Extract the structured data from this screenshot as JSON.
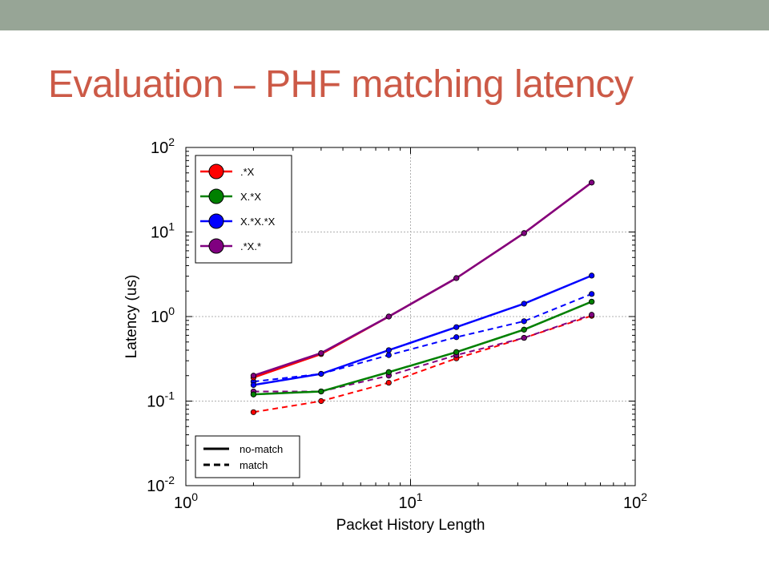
{
  "slide": {
    "title": "Evaluation – PHF matching latency"
  },
  "colors": {
    "top_bar": "#97a596",
    "title": "#cc5a47"
  },
  "chart_data": {
    "type": "line",
    "title": "",
    "xlabel": "Packet History Length",
    "ylabel": "Latency (us)",
    "xscale": "log",
    "yscale": "log",
    "xlim": [
      1,
      100
    ],
    "ylim": [
      0.01,
      100
    ],
    "xticks": [
      {
        "value": 1,
        "base": "10",
        "exp": "0"
      },
      {
        "value": 10,
        "base": "10",
        "exp": "1"
      },
      {
        "value": 100,
        "base": "10",
        "exp": "2"
      }
    ],
    "yticks": [
      {
        "value": 0.01,
        "base": "10",
        "exp": "-2"
      },
      {
        "value": 0.1,
        "base": "10",
        "exp": "-1"
      },
      {
        "value": 1,
        "base": "10",
        "exp": "0"
      },
      {
        "value": 10,
        "base": "10",
        "exp": "1"
      },
      {
        "value": 100,
        "base": "10",
        "exp": "2"
      }
    ],
    "grid": true,
    "x": [
      2,
      4,
      8,
      16,
      32,
      64
    ],
    "series": [
      {
        "name": ".*X",
        "style": "no-match",
        "color": "#ff0000",
        "values": [
          0.19,
          0.36,
          1.0,
          2.85,
          9.7,
          38.5
        ]
      },
      {
        "name": ".*X",
        "style": "match",
        "color": "#ff0000",
        "values": [
          0.074,
          0.1,
          0.165,
          0.32,
          0.56,
          1.02
        ]
      },
      {
        "name": "X.*X",
        "style": "no-match",
        "color": "#008000",
        "values": [
          0.12,
          0.13,
          0.22,
          0.38,
          0.7,
          1.5
        ]
      },
      {
        "name": "X.*X",
        "style": "match",
        "color": "#008000",
        "values": [
          0.12,
          0.13,
          0.22,
          0.38,
          0.7,
          1.5
        ]
      },
      {
        "name": "X.*X.*X",
        "style": "no-match",
        "color": "#0000ff",
        "values": [
          0.155,
          0.21,
          0.4,
          0.75,
          1.42,
          3.05
        ]
      },
      {
        "name": "X.*X.*X",
        "style": "match",
        "color": "#0000ff",
        "values": [
          0.17,
          0.21,
          0.35,
          0.57,
          0.88,
          1.85
        ]
      },
      {
        "name": ".*X.*",
        "style": "no-match",
        "color": "#800080",
        "values": [
          0.2,
          0.37,
          1.0,
          2.85,
          9.7,
          38.5
        ]
      },
      {
        "name": ".*X.*",
        "style": "match",
        "color": "#800080",
        "values": [
          0.13,
          0.13,
          0.2,
          0.35,
          0.56,
          1.05
        ]
      }
    ],
    "legend": {
      "placement": "upper-left",
      "series_entries": [
        {
          "label": ".*X",
          "color": "#ff0000"
        },
        {
          "label": "X.*X",
          "color": "#008000"
        },
        {
          "label": "X.*X.*X",
          "color": "#0000ff"
        },
        {
          "label": ".*X.*",
          "color": "#800080"
        }
      ],
      "style_placement": "lower-left",
      "style_entries": [
        {
          "label": "no-match",
          "dash": "solid"
        },
        {
          "label": "match",
          "dash": "dashed"
        }
      ]
    }
  }
}
